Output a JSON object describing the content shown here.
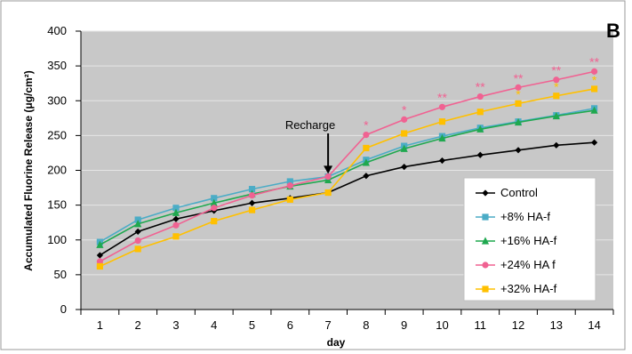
{
  "chart_data": {
    "type": "line",
    "title": "",
    "panel_label": "B",
    "xlabel": "day",
    "ylabel": "Accumulated Fluorine Release (μg/cm²)",
    "x": [
      1,
      2,
      3,
      4,
      5,
      6,
      7,
      8,
      9,
      10,
      11,
      12,
      13,
      14
    ],
    "xlim": [
      0.5,
      14.5
    ],
    "ylim": [
      0,
      400
    ],
    "yticks": [
      0,
      50,
      100,
      150,
      200,
      250,
      300,
      350,
      400
    ],
    "xticks": [
      1,
      2,
      3,
      4,
      5,
      6,
      7,
      8,
      9,
      10,
      11,
      12,
      13,
      14
    ],
    "grid": "horizontal",
    "plot_background": "#c8c8c8",
    "legend_position": "bottom-right",
    "series": [
      {
        "name": "Control",
        "color": "#000000",
        "marker": "diamond",
        "values": [
          78,
          112,
          130,
          142,
          153,
          160,
          168,
          192,
          205,
          214,
          222,
          229,
          236,
          240
        ]
      },
      {
        "name": "+8% HA-f",
        "color": "#4bacc6",
        "marker": "square",
        "values": [
          97,
          129,
          146,
          160,
          173,
          184,
          191,
          215,
          235,
          249,
          261,
          270,
          279,
          289
        ]
      },
      {
        "name": "+16% HA-f",
        "color": "#1fa84f",
        "marker": "triangle",
        "values": [
          93,
          123,
          139,
          153,
          166,
          177,
          186,
          211,
          231,
          246,
          259,
          269,
          278,
          286
        ]
      },
      {
        "name": "+24% HA f",
        "color": "#f06292",
        "marker": "circle",
        "values": [
          69,
          99,
          121,
          146,
          164,
          178,
          191,
          251,
          273,
          291,
          306,
          319,
          330,
          342
        ]
      },
      {
        "name": "+32% HA-f",
        "color": "#ffc000",
        "marker": "square",
        "values": [
          62,
          87,
          105,
          127,
          143,
          158,
          168,
          232,
          253,
          270,
          284,
          296,
          307,
          317
        ]
      }
    ],
    "annotations": [
      {
        "text": "Recharge",
        "x": 7,
        "y": 195,
        "type": "arrow"
      }
    ],
    "significance": [
      {
        "x": 8,
        "y": 265,
        "text": "*",
        "color": "#f06292"
      },
      {
        "x": 9,
        "y": 287,
        "text": "*",
        "color": "#f06292"
      },
      {
        "x": 10,
        "y": 305,
        "text": "**",
        "color": "#f06292"
      },
      {
        "x": 11,
        "y": 320,
        "text": "**",
        "color": "#f06292"
      },
      {
        "x": 12,
        "y": 332,
        "text": "**",
        "color": "#f06292"
      },
      {
        "x": 13,
        "y": 344,
        "text": "**",
        "color": "#f06292"
      },
      {
        "x": 14,
        "y": 356,
        "text": "**",
        "color": "#f06292"
      },
      {
        "x": 12,
        "y": 309,
        "text": "*",
        "color": "#ffc000"
      },
      {
        "x": 13,
        "y": 320,
        "text": "*",
        "color": "#ffc000"
      },
      {
        "x": 14,
        "y": 330,
        "text": "*",
        "color": "#ffc000"
      }
    ]
  }
}
